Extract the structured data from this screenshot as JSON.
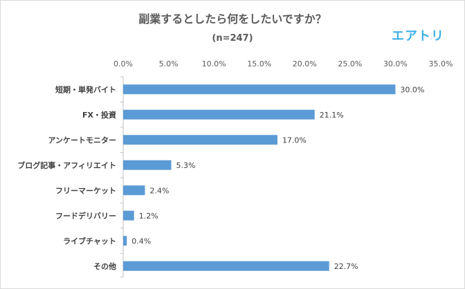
{
  "chart_data": {
    "type": "bar",
    "orientation": "horizontal",
    "title": "副業するとしたら何をしたいですか？",
    "subtitle": "(n=247)",
    "categories": [
      "短期・単発バイト",
      "FX・投資",
      "アンケートモニター",
      "ブログ記事・アフィリエイト",
      "フリーマーケット",
      "フードデリバリー",
      "ライブチャット",
      "その他"
    ],
    "values": [
      30.0,
      21.1,
      17.0,
      5.3,
      2.4,
      1.2,
      0.4,
      22.7
    ],
    "value_labels": [
      "30.0%",
      "21.1%",
      "17.0%",
      "5.3%",
      "2.4%",
      "1.2%",
      "0.4%",
      "22.7%"
    ],
    "xlim": [
      0,
      35
    ],
    "x_ticks": [
      "0.0%",
      "5.0%",
      "10.0%",
      "15.0%",
      "20.0%",
      "25.0%",
      "30.0%",
      "35.0%"
    ],
    "x_tick_values": [
      0,
      5,
      10,
      15,
      20,
      25,
      30,
      35
    ],
    "bar_color": "#5b9bd5",
    "axis_position": "top",
    "grid": false,
    "legend": "none"
  },
  "brand": {
    "logo_text": "エアトリ",
    "logo_color": "#3fb0e6"
  }
}
